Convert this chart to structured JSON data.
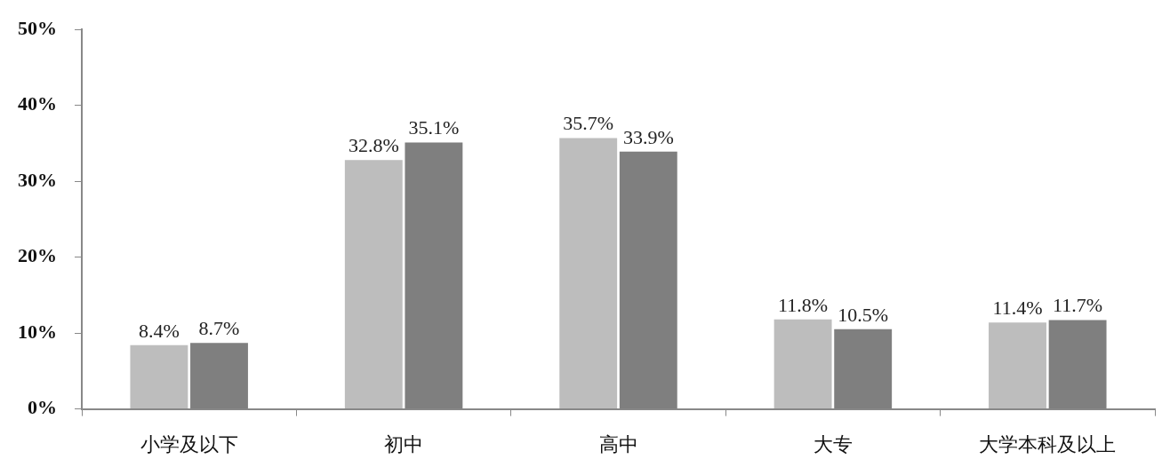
{
  "chart_data": {
    "type": "bar",
    "categories": [
      "小学及以下",
      "初中",
      "高中",
      "大专",
      "大学本科及以上"
    ],
    "series": [
      {
        "color": "#bdbdbd",
        "values": [
          8.4,
          32.8,
          35.7,
          11.8,
          11.4
        ],
        "value_labels": [
          "8.4%",
          "32.8%",
          "35.7%",
          "11.8%",
          "11.4%"
        ]
      },
      {
        "color": "#7f7f7f",
        "values": [
          8.7,
          35.1,
          33.9,
          10.5,
          11.7
        ],
        "value_labels": [
          "8.7%",
          "35.1%",
          "33.9%",
          "10.5%",
          "11.7%"
        ]
      }
    ],
    "ylim": [
      0,
      50
    ],
    "yticks": [
      {
        "value": 0,
        "label": "0%"
      },
      {
        "value": 10,
        "label": "10%"
      },
      {
        "value": 20,
        "label": "20%"
      },
      {
        "value": 30,
        "label": "30%"
      },
      {
        "value": 40,
        "label": "40%"
      },
      {
        "value": 50,
        "label": "50%"
      }
    ],
    "legend": false
  }
}
